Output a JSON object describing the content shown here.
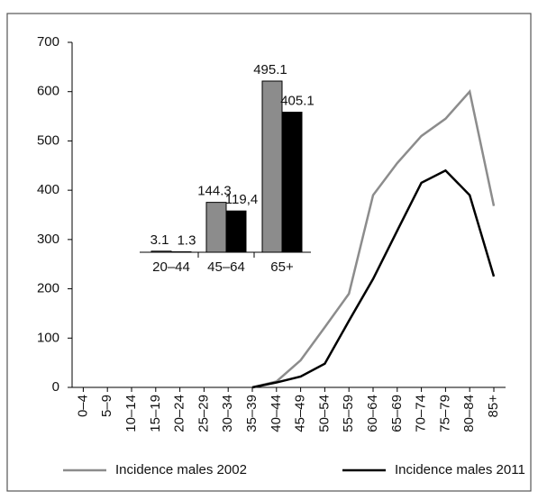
{
  "chart_data": [
    {
      "type": "line",
      "categories": [
        "0–4",
        "5–9",
        "10–14",
        "15–19",
        "20–24",
        "25–29",
        "30–34",
        "35–39",
        "40–44",
        "45–49",
        "50–54",
        "55–59",
        "60–64",
        "65–69",
        "70–74",
        "75–79",
        "80–84",
        "85+"
      ],
      "series": [
        {
          "name": "Incidence males 2002",
          "color": "#8c8c8c",
          "values": [
            null,
            null,
            null,
            null,
            null,
            null,
            null,
            0,
            12,
            55,
            122,
            190,
            390,
            455,
            510,
            545,
            600,
            368
          ]
        },
        {
          "name": "Incidence males 2011",
          "color": "#000000",
          "values": [
            null,
            null,
            null,
            null,
            null,
            null,
            null,
            0,
            10,
            22,
            48,
            135,
            220,
            318,
            415,
            440,
            390,
            225
          ]
        }
      ],
      "ylim": [
        0,
        700
      ],
      "yticks": [
        0,
        100,
        200,
        300,
        400,
        500,
        600,
        700
      ]
    },
    {
      "type": "bar",
      "categories": [
        "20–44",
        "45–64",
        "65+"
      ],
      "series": [
        {
          "color": "#8c8c8c",
          "values": [
            3.1,
            144.3,
            495.1
          ]
        },
        {
          "color": "#000000",
          "values": [
            1.3,
            119.4,
            405.1
          ],
          "value_labels": [
            "1.3",
            "119,4",
            "405.1"
          ]
        }
      ]
    }
  ]
}
